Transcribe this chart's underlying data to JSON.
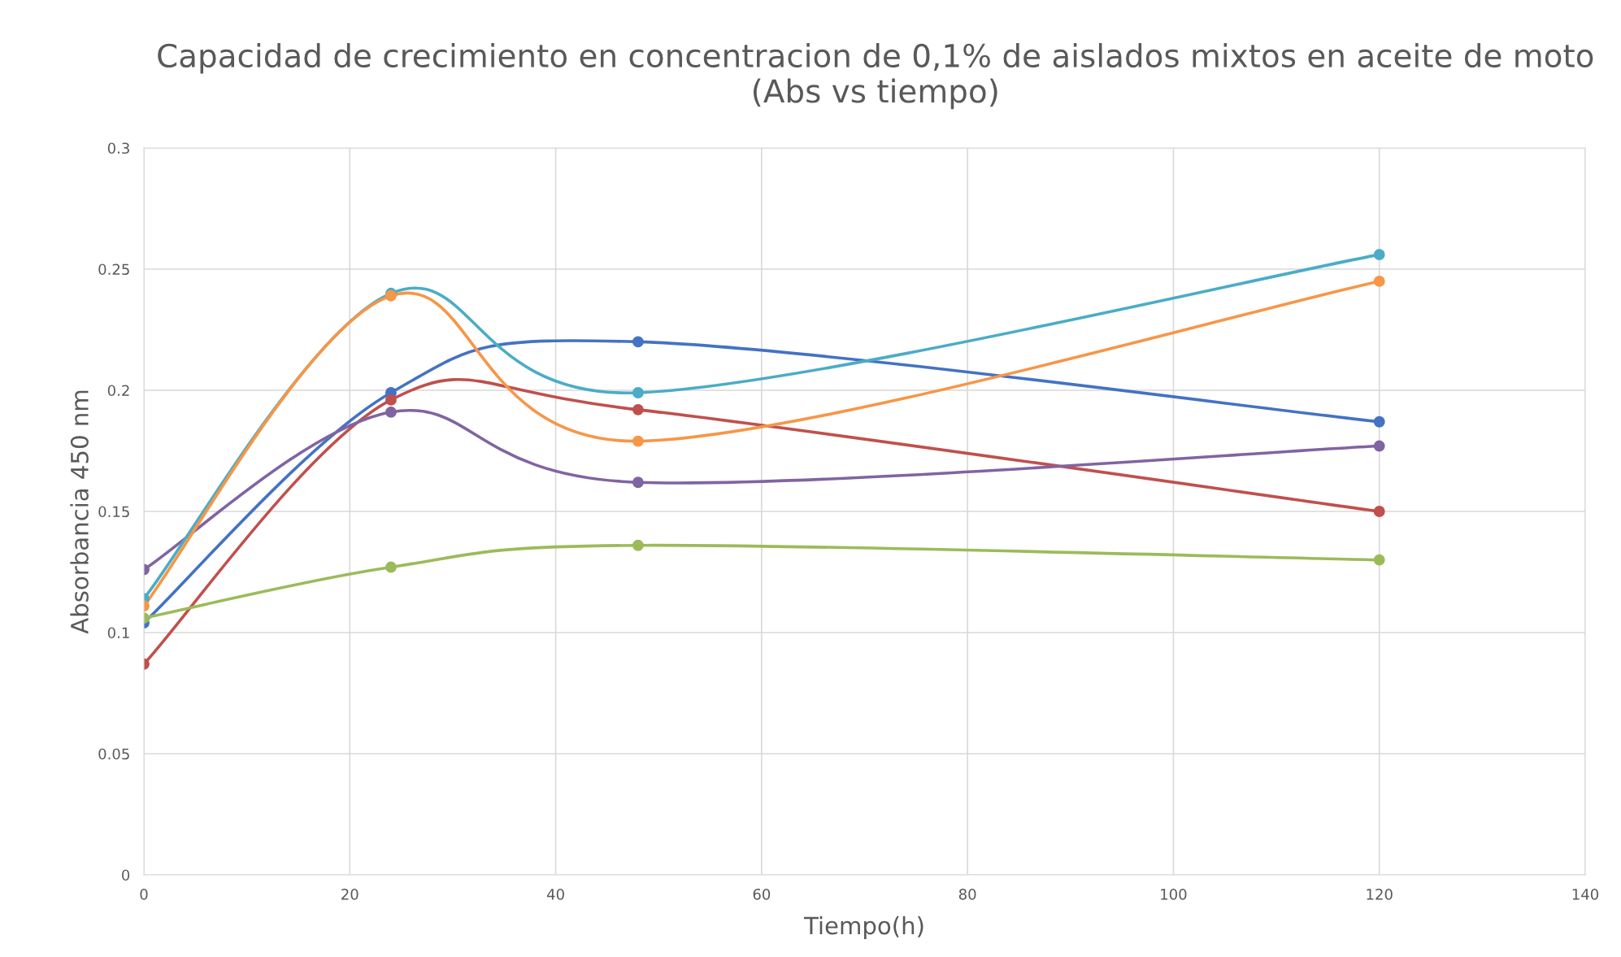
{
  "chart_data": {
    "type": "line",
    "title": "Capacidad de crecimiento en concentracion de 0,1% de aislados mixtos en aceite de moto (Abs vs tiempo)",
    "xlabel": "Tiempo(h)",
    "ylabel": "Absorbancia 450 nm",
    "x": [
      0,
      24,
      48,
      120
    ],
    "series": [
      {
        "color": "#4472c4",
        "values": [
          0.104,
          0.199,
          0.22,
          0.187
        ]
      },
      {
        "color": "#c0504d",
        "values": [
          0.087,
          0.196,
          0.192,
          0.15
        ]
      },
      {
        "color": "#9bbb59",
        "values": [
          0.106,
          0.127,
          0.136,
          0.13
        ]
      },
      {
        "color": "#8064a2",
        "values": [
          0.126,
          0.191,
          0.162,
          0.177
        ]
      },
      {
        "color": "#4bacc6",
        "values": [
          0.114,
          0.24,
          0.199,
          0.256
        ]
      },
      {
        "color": "#f79646",
        "values": [
          0.111,
          0.239,
          0.179,
          0.245
        ]
      }
    ],
    "xlim": [
      0,
      140
    ],
    "xticks": [
      0,
      20,
      40,
      60,
      80,
      100,
      120,
      140
    ],
    "ylim": [
      0,
      0.3
    ],
    "yticks": [
      0,
      0.05,
      0.1,
      0.15,
      0.2,
      0.25,
      0.3
    ],
    "grid": true,
    "marker": "circle",
    "line_style": "solid"
  }
}
